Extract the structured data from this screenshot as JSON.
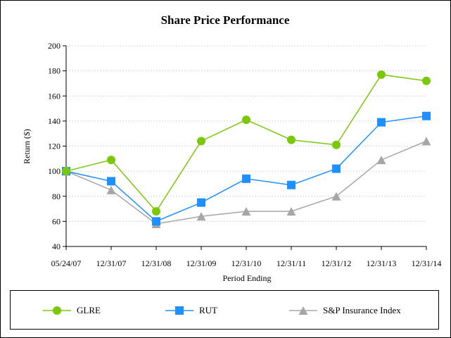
{
  "chart_data": {
    "type": "line",
    "title": "Share Price Performance",
    "xlabel": "Period Ending",
    "ylabel": "Return ($)",
    "categories": [
      "05/24/07",
      "12/31/07",
      "12/31/08",
      "12/31/09",
      "12/31/10",
      "12/31/11",
      "12/31/12",
      "12/31/13",
      "12/31/14"
    ],
    "ylim": [
      40,
      200
    ],
    "yticks": [
      40,
      60,
      80,
      100,
      120,
      140,
      160,
      180,
      200
    ],
    "grid": true,
    "legend_position": "bottom",
    "series": [
      {
        "name": "GLRE",
        "marker": "circle",
        "color": "#7ac70c",
        "values": [
          100,
          109,
          68,
          124,
          141,
          125,
          121,
          177,
          172
        ]
      },
      {
        "name": "RUT",
        "marker": "square",
        "color": "#1e90ff",
        "values": [
          100,
          92,
          60,
          75,
          94,
          89,
          102,
          139,
          144
        ]
      },
      {
        "name": "S&P Insurance Index",
        "marker": "triangle",
        "color": "#a6a6a6",
        "values": [
          100,
          85,
          58,
          64,
          68,
          68,
          80,
          109,
          124
        ]
      }
    ]
  }
}
